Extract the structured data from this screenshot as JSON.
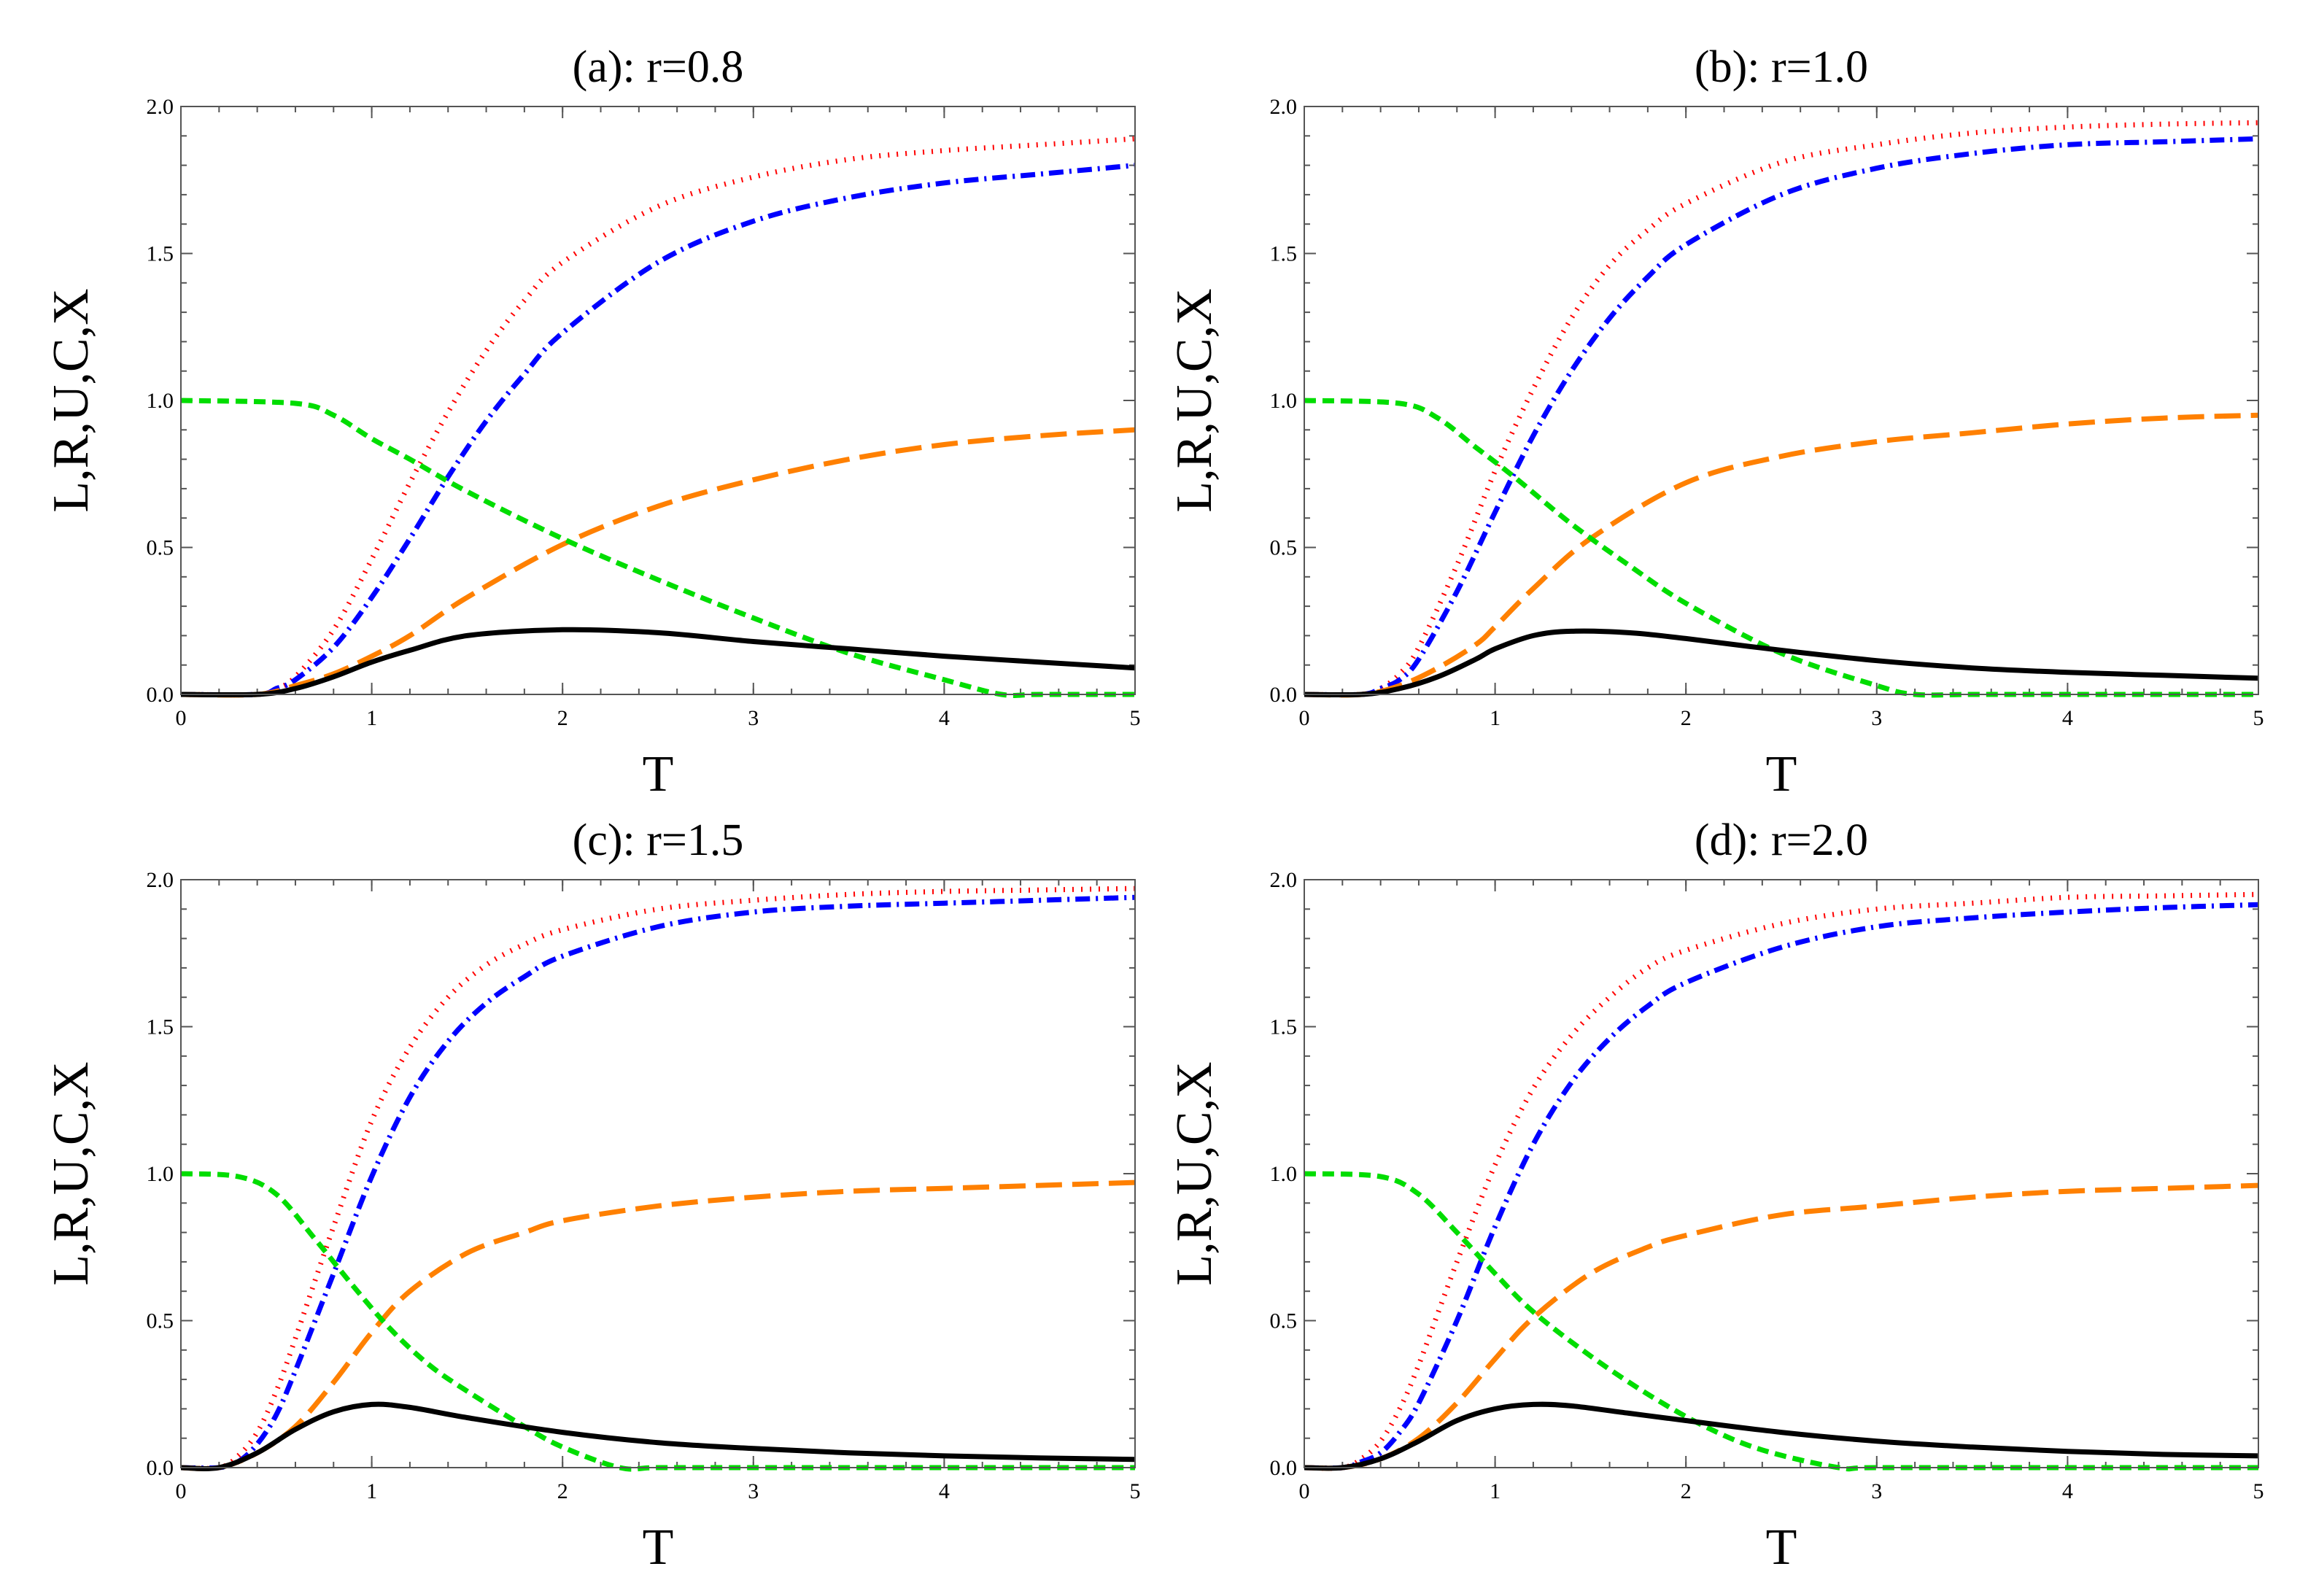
{
  "chart_data": [
    {
      "type": "line",
      "title": "(a): r=0.8",
      "xlabel": "T",
      "ylabel": "L,R,U,C,X",
      "xlim": [
        0,
        5
      ],
      "ylim": [
        0,
        2
      ],
      "xticks": [
        "0",
        "1",
        "2",
        "3",
        "4",
        "5"
      ],
      "yticks": [
        "0.0",
        "0.5",
        "1.0",
        "1.5",
        "2.0"
      ],
      "series": [
        {
          "name": "red-dotted",
          "color": "#ff0000",
          "style": "dotted",
          "x": [
            0,
            0.4,
            0.5,
            0.6,
            0.8,
            1.0,
            1.2,
            1.4,
            1.6,
            1.8,
            2.0,
            2.5,
            3.0,
            3.5,
            4.0,
            4.5,
            5.0
          ],
          "y": [
            0,
            0,
            0.02,
            0.06,
            0.22,
            0.46,
            0.72,
            0.96,
            1.17,
            1.34,
            1.47,
            1.66,
            1.76,
            1.82,
            1.85,
            1.87,
            1.89
          ]
        },
        {
          "name": "blue-dashdot",
          "color": "#0000ff",
          "style": "dashdot",
          "x": [
            0,
            0.4,
            0.5,
            0.6,
            0.8,
            1.0,
            1.2,
            1.4,
            1.6,
            1.8,
            2.0,
            2.5,
            3.0,
            3.5,
            4.0,
            4.5,
            5.0
          ],
          "y": [
            0,
            0,
            0.02,
            0.05,
            0.16,
            0.33,
            0.53,
            0.74,
            0.93,
            1.09,
            1.23,
            1.47,
            1.61,
            1.69,
            1.74,
            1.77,
            1.8
          ]
        },
        {
          "name": "orange-dashed",
          "color": "#ff8000",
          "style": "longdash",
          "x": [
            0,
            0.4,
            0.6,
            0.8,
            1.0,
            1.2,
            1.5,
            2.0,
            2.5,
            3.0,
            3.5,
            4.0,
            4.5,
            5.0
          ],
          "y": [
            0,
            0,
            0.03,
            0.07,
            0.13,
            0.2,
            0.33,
            0.51,
            0.64,
            0.73,
            0.8,
            0.85,
            0.88,
            0.9
          ]
        },
        {
          "name": "green-dashed",
          "color": "#00dd00",
          "style": "shortdash",
          "x": [
            0,
            0.6,
            0.8,
            1.0,
            1.2,
            1.5,
            2.0,
            2.5,
            3.0,
            3.5,
            4.0,
            4.3,
            4.5,
            5.0
          ],
          "y": [
            1.0,
            0.99,
            0.95,
            0.87,
            0.8,
            0.69,
            0.53,
            0.39,
            0.26,
            0.14,
            0.05,
            0.0,
            0.0,
            0.0
          ]
        },
        {
          "name": "black-solid",
          "color": "#000000",
          "style": "solid",
          "x": [
            0,
            0.4,
            0.6,
            0.8,
            1.0,
            1.2,
            1.5,
            2.0,
            2.5,
            3.0,
            3.5,
            4.0,
            4.5,
            5.0
          ],
          "y": [
            0,
            0,
            0.02,
            0.06,
            0.11,
            0.15,
            0.2,
            0.22,
            0.21,
            0.18,
            0.155,
            0.13,
            0.11,
            0.09
          ]
        }
      ]
    },
    {
      "type": "line",
      "title": "(b): r=1.0",
      "xlabel": "T",
      "ylabel": "L,R,U,C,X",
      "xlim": [
        0,
        5
      ],
      "ylim": [
        0,
        2
      ],
      "xticks": [
        "0",
        "1",
        "2",
        "3",
        "4",
        "5"
      ],
      "yticks": [
        "0.0",
        "0.5",
        "1.0",
        "1.5",
        "2.0"
      ],
      "series": [
        {
          "name": "red-dotted",
          "color": "#ff0000",
          "style": "dotted",
          "x": [
            0,
            0.3,
            0.4,
            0.5,
            0.6,
            0.8,
            1.0,
            1.2,
            1.4,
            1.6,
            1.8,
            2.0,
            2.5,
            3.0,
            3.5,
            4.0,
            4.5,
            5.0
          ],
          "y": [
            0,
            0,
            0.02,
            0.07,
            0.16,
            0.44,
            0.76,
            1.04,
            1.28,
            1.46,
            1.58,
            1.67,
            1.81,
            1.87,
            1.91,
            1.93,
            1.94,
            1.945
          ]
        },
        {
          "name": "blue-dashdot",
          "color": "#0000ff",
          "style": "dashdot",
          "x": [
            0,
            0.3,
            0.4,
            0.5,
            0.6,
            0.8,
            1.0,
            1.2,
            1.4,
            1.6,
            1.8,
            2.0,
            2.5,
            3.0,
            3.5,
            4.0,
            4.5,
            5.0
          ],
          "y": [
            0,
            0,
            0.02,
            0.05,
            0.12,
            0.35,
            0.62,
            0.88,
            1.1,
            1.28,
            1.42,
            1.53,
            1.7,
            1.79,
            1.84,
            1.87,
            1.88,
            1.89
          ]
        },
        {
          "name": "orange-dashed",
          "color": "#ff8000",
          "style": "longdash",
          "x": [
            0,
            0.3,
            0.5,
            0.7,
            0.9,
            1.0,
            1.2,
            1.5,
            2.0,
            2.5,
            3.0,
            3.5,
            4.0,
            4.5,
            5.0
          ],
          "y": [
            0,
            0,
            0.03,
            0.09,
            0.17,
            0.23,
            0.36,
            0.53,
            0.72,
            0.81,
            0.86,
            0.89,
            0.92,
            0.94,
            0.95
          ]
        },
        {
          "name": "green-dashed",
          "color": "#00dd00",
          "style": "shortdash",
          "x": [
            0,
            0.5,
            0.7,
            0.9,
            1.1,
            1.4,
            1.7,
            2.0,
            2.5,
            3.0,
            3.2,
            3.5,
            4.0,
            5.0
          ],
          "y": [
            1.0,
            0.99,
            0.94,
            0.84,
            0.74,
            0.58,
            0.44,
            0.31,
            0.14,
            0.03,
            0.0,
            0.0,
            0.0,
            0.0
          ]
        },
        {
          "name": "black-solid",
          "color": "#000000",
          "style": "solid",
          "x": [
            0,
            0.3,
            0.5,
            0.7,
            0.9,
            1.0,
            1.2,
            1.4,
            1.7,
            2.0,
            2.5,
            3.0,
            3.5,
            4.0,
            4.5,
            5.0
          ],
          "y": [
            0,
            0,
            0.02,
            0.06,
            0.12,
            0.155,
            0.2,
            0.215,
            0.21,
            0.19,
            0.15,
            0.115,
            0.09,
            0.075,
            0.065,
            0.055
          ]
        }
      ]
    },
    {
      "type": "line",
      "title": "(c): r=1.5",
      "xlabel": "T",
      "ylabel": "L,R,U,C,X",
      "xlim": [
        0,
        5
      ],
      "ylim": [
        0,
        2
      ],
      "xticks": [
        "0",
        "1",
        "2",
        "3",
        "4",
        "5"
      ],
      "yticks": [
        "0.0",
        "0.5",
        "1.0",
        "1.5",
        "2.0"
      ],
      "series": [
        {
          "name": "red-dotted",
          "color": "#ff0000",
          "style": "dotted",
          "x": [
            0,
            0.2,
            0.3,
            0.4,
            0.5,
            0.6,
            0.8,
            1.0,
            1.2,
            1.4,
            1.6,
            1.8,
            2.0,
            2.5,
            3.0,
            3.5,
            4.0,
            4.5,
            5.0
          ],
          "y": [
            0,
            0,
            0.04,
            0.12,
            0.26,
            0.44,
            0.82,
            1.18,
            1.43,
            1.6,
            1.71,
            1.78,
            1.83,
            1.9,
            1.93,
            1.95,
            1.96,
            1.965,
            1.97
          ]
        },
        {
          "name": "blue-dashdot",
          "color": "#0000ff",
          "style": "dashdot",
          "x": [
            0,
            0.2,
            0.3,
            0.4,
            0.5,
            0.6,
            0.8,
            1.0,
            1.2,
            1.4,
            1.6,
            1.8,
            2.0,
            2.5,
            3.0,
            3.5,
            4.0,
            4.5,
            5.0
          ],
          "y": [
            0,
            0,
            0.02,
            0.08,
            0.18,
            0.33,
            0.66,
            0.99,
            1.26,
            1.45,
            1.58,
            1.67,
            1.74,
            1.84,
            1.89,
            1.91,
            1.92,
            1.93,
            1.94
          ]
        },
        {
          "name": "orange-dashed",
          "color": "#ff8000",
          "style": "longdash",
          "x": [
            0,
            0.2,
            0.4,
            0.6,
            0.8,
            1.0,
            1.2,
            1.5,
            1.8,
            2.0,
            2.5,
            3.0,
            3.5,
            4.0,
            4.5,
            5.0
          ],
          "y": [
            0,
            0,
            0.05,
            0.14,
            0.29,
            0.46,
            0.6,
            0.73,
            0.8,
            0.84,
            0.89,
            0.92,
            0.94,
            0.95,
            0.96,
            0.97
          ]
        },
        {
          "name": "green-dashed",
          "color": "#00dd00",
          "style": "shortdash",
          "x": [
            0,
            0.3,
            0.5,
            0.7,
            0.9,
            1.1,
            1.3,
            1.5,
            1.8,
            2.0,
            2.3,
            2.5,
            3.0,
            4.0,
            5.0
          ],
          "y": [
            1.0,
            0.99,
            0.93,
            0.78,
            0.62,
            0.47,
            0.35,
            0.26,
            0.14,
            0.07,
            0.0,
            0.0,
            0.0,
            0.0,
            0.0
          ]
        },
        {
          "name": "black-solid",
          "color": "#000000",
          "style": "solid",
          "x": [
            0,
            0.2,
            0.4,
            0.6,
            0.8,
            1.0,
            1.2,
            1.5,
            2.0,
            2.5,
            3.0,
            3.5,
            4.0,
            4.5,
            5.0
          ],
          "y": [
            0,
            0,
            0.05,
            0.13,
            0.19,
            0.215,
            0.205,
            0.17,
            0.12,
            0.085,
            0.065,
            0.05,
            0.04,
            0.033,
            0.028
          ]
        }
      ]
    },
    {
      "type": "line",
      "title": "(d): r=2.0",
      "xlabel": "T",
      "ylabel": "L,R,U,C,X",
      "xlim": [
        0,
        5
      ],
      "ylim": [
        0,
        2
      ],
      "xticks": [
        "0",
        "1",
        "2",
        "3",
        "4",
        "5"
      ],
      "yticks": [
        "0.0",
        "0.5",
        "1.0",
        "1.5",
        "2.0"
      ],
      "series": [
        {
          "name": "red-dotted",
          "color": "#ff0000",
          "style": "dotted",
          "x": [
            0,
            0.2,
            0.3,
            0.4,
            0.5,
            0.6,
            0.8,
            1.0,
            1.2,
            1.4,
            1.6,
            1.8,
            2.0,
            2.5,
            3.0,
            3.5,
            4.0,
            4.5,
            5.0
          ],
          "y": [
            0,
            0,
            0.03,
            0.09,
            0.2,
            0.35,
            0.7,
            1.03,
            1.29,
            1.47,
            1.6,
            1.7,
            1.76,
            1.85,
            1.9,
            1.92,
            1.94,
            1.945,
            1.95
          ]
        },
        {
          "name": "blue-dashdot",
          "color": "#0000ff",
          "style": "dashdot",
          "x": [
            0,
            0.2,
            0.3,
            0.4,
            0.5,
            0.6,
            0.8,
            1.0,
            1.2,
            1.4,
            1.6,
            1.8,
            2.0,
            2.5,
            3.0,
            3.5,
            4.0,
            4.5,
            5.0
          ],
          "y": [
            0,
            0,
            0.02,
            0.05,
            0.12,
            0.22,
            0.5,
            0.82,
            1.1,
            1.31,
            1.46,
            1.57,
            1.65,
            1.77,
            1.84,
            1.87,
            1.89,
            1.905,
            1.915
          ]
        },
        {
          "name": "orange-dashed",
          "color": "#ff8000",
          "style": "longdash",
          "x": [
            0,
            0.2,
            0.4,
            0.6,
            0.8,
            1.0,
            1.2,
            1.5,
            1.8,
            2.0,
            2.5,
            3.0,
            3.5,
            4.0,
            4.5,
            5.0
          ],
          "y": [
            0,
            0,
            0.03,
            0.1,
            0.22,
            0.37,
            0.51,
            0.66,
            0.75,
            0.79,
            0.86,
            0.89,
            0.92,
            0.94,
            0.95,
            0.96
          ]
        },
        {
          "name": "green-dashed",
          "color": "#00dd00",
          "style": "shortdash",
          "x": [
            0,
            0.4,
            0.6,
            0.8,
            1.0,
            1.2,
            1.5,
            1.8,
            2.1,
            2.4,
            2.8,
            3.0,
            4.0,
            5.0
          ],
          "y": [
            1.0,
            0.99,
            0.93,
            0.8,
            0.66,
            0.53,
            0.38,
            0.25,
            0.14,
            0.06,
            0.0,
            0.0,
            0.0,
            0.0
          ]
        },
        {
          "name": "black-solid",
          "color": "#000000",
          "style": "solid",
          "x": [
            0,
            0.2,
            0.4,
            0.6,
            0.8,
            1.0,
            1.2,
            1.4,
            1.7,
            2.0,
            2.5,
            3.0,
            3.5,
            4.0,
            4.5,
            5.0
          ],
          "y": [
            0,
            0,
            0.03,
            0.09,
            0.16,
            0.2,
            0.215,
            0.21,
            0.185,
            0.16,
            0.12,
            0.09,
            0.07,
            0.055,
            0.045,
            0.04
          ]
        }
      ]
    }
  ]
}
